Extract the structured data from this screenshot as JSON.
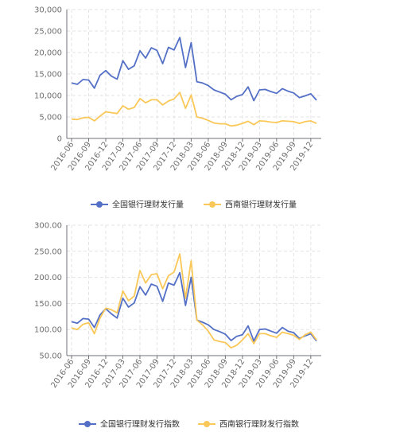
{
  "chart_data": [
    {
      "type": "line",
      "x": [
        "2016-06",
        "2016-07",
        "2016-08",
        "2016-09",
        "2016-10",
        "2016-11",
        "2016-12",
        "2017-01",
        "2017-02",
        "2017-03",
        "2017-04",
        "2017-05",
        "2017-06",
        "2017-07",
        "2017-08",
        "2017-09",
        "2017-10",
        "2017-11",
        "2017-12",
        "2018-01",
        "2018-02",
        "2018-03",
        "2018-04",
        "2018-05",
        "2018-06",
        "2018-07",
        "2018-08",
        "2018-09",
        "2018-10",
        "2018-11",
        "2018-12",
        "2019-01",
        "2019-02",
        "2019-03",
        "2019-04",
        "2019-05",
        "2019-06",
        "2019-07",
        "2019-08",
        "2019-09",
        "2019-10",
        "2019-11",
        "2019-12",
        "2020-01"
      ],
      "x_tick_labels": [
        "2016-06",
        "2016-09",
        "2016-12",
        "2017-03",
        "2017-06",
        "2017-09",
        "2017-12",
        "2018-03",
        "2018-06",
        "2018-09",
        "2018-12",
        "2019-03",
        "2019-06",
        "2019-09",
        "2019-12"
      ],
      "ylim": [
        0,
        30000
      ],
      "y_ticks": [
        "0",
        "5,000",
        "10,000",
        "15,000",
        "20,000",
        "25,000",
        "30,000"
      ],
      "grid": true,
      "legend_position": "bottom",
      "series": [
        {
          "name": "全国银行理财发行量",
          "color": "#5470c6",
          "values": [
            12900,
            12600,
            13700,
            13600,
            11700,
            14700,
            15800,
            14500,
            13800,
            18100,
            16100,
            16900,
            20400,
            18700,
            21100,
            20500,
            17400,
            21200,
            20600,
            23500,
            16500,
            22300,
            13200,
            12900,
            12300,
            11300,
            10800,
            10300,
            9000,
            9800,
            10200,
            12000,
            8800,
            11300,
            11400,
            10900,
            10500,
            11600,
            11000,
            10600,
            9500,
            9900,
            10400,
            8900
          ]
        },
        {
          "name": "西南银行理财发行量",
          "color": "#fac858",
          "values": [
            4500,
            4400,
            4800,
            4900,
            4100,
            5200,
            6200,
            6000,
            5800,
            7600,
            6800,
            7200,
            9300,
            8300,
            9000,
            9000,
            7800,
            8700,
            9200,
            10700,
            7000,
            10100,
            5000,
            4700,
            4200,
            3600,
            3400,
            3400,
            2900,
            3100,
            3500,
            4000,
            3200,
            4100,
            4000,
            3800,
            3700,
            4100,
            4000,
            3900,
            3500,
            3900,
            4100,
            3500
          ]
        }
      ]
    },
    {
      "type": "line",
      "x": [
        "2016-06",
        "2016-07",
        "2016-08",
        "2016-09",
        "2016-10",
        "2016-11",
        "2016-12",
        "2017-01",
        "2017-02",
        "2017-03",
        "2017-04",
        "2017-05",
        "2017-06",
        "2017-07",
        "2017-08",
        "2017-09",
        "2017-10",
        "2017-11",
        "2017-12",
        "2018-01",
        "2018-02",
        "2018-03",
        "2018-04",
        "2018-05",
        "2018-06",
        "2018-07",
        "2018-08",
        "2018-09",
        "2018-10",
        "2018-11",
        "2018-12",
        "2019-01",
        "2019-02",
        "2019-03",
        "2019-04",
        "2019-05",
        "2019-06",
        "2019-07",
        "2019-08",
        "2019-09",
        "2019-10",
        "2019-11",
        "2019-12",
        "2020-01"
      ],
      "x_tick_labels": [
        "2016-06",
        "2016-09",
        "2016-12",
        "2017-03",
        "2017-06",
        "2017-09",
        "2017-12",
        "2018-03",
        "2018-06",
        "2018-09",
        "2018-12",
        "2019-03",
        "2019-06",
        "2019-09",
        "2019-12"
      ],
      "ylim": [
        50,
        300
      ],
      "y_ticks": [
        "50.00",
        "100.00",
        "150.00",
        "200.00",
        "250.00",
        "300.00"
      ],
      "grid": true,
      "legend_position": "bottom",
      "series": [
        {
          "name": "全国银行理财发行指数",
          "color": "#5470c6",
          "values": [
            115,
            112,
            121,
            120,
            104,
            128,
            140,
            130,
            122,
            160,
            143,
            151,
            182,
            166,
            187,
            183,
            154,
            189,
            185,
            209,
            146,
            200,
            118,
            114,
            109,
            100,
            96,
            91,
            79,
            87,
            90,
            107,
            78,
            100,
            101,
            97,
            93,
            104,
            97,
            94,
            83,
            88,
            92,
            78
          ]
        },
        {
          "name": "西南银行理财发行指数",
          "color": "#fac858",
          "values": [
            103,
            100,
            110,
            113,
            92,
            122,
            141,
            138,
            132,
            174,
            155,
            164,
            213,
            189,
            205,
            207,
            178,
            203,
            210,
            245,
            160,
            232,
            118,
            109,
            97,
            80,
            77,
            75,
            65,
            70,
            80,
            92,
            73,
            92,
            92,
            88,
            85,
            95,
            92,
            89,
            81,
            90,
            95,
            80
          ]
        }
      ]
    }
  ]
}
